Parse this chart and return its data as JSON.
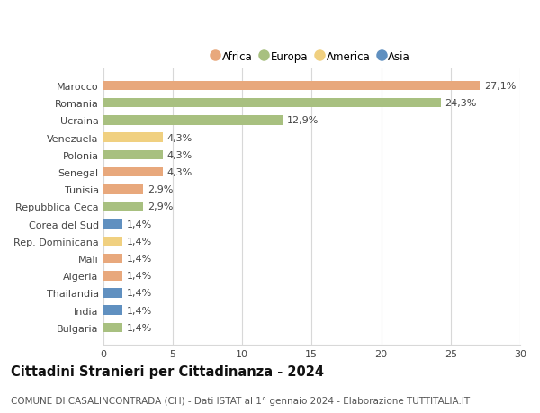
{
  "countries": [
    "Bulgaria",
    "India",
    "Thailandia",
    "Algeria",
    "Mali",
    "Rep. Dominicana",
    "Corea del Sud",
    "Repubblica Ceca",
    "Tunisia",
    "Senegal",
    "Polonia",
    "Venezuela",
    "Ucraina",
    "Romania",
    "Marocco"
  ],
  "values": [
    1.4,
    1.4,
    1.4,
    1.4,
    1.4,
    1.4,
    1.4,
    2.9,
    2.9,
    4.3,
    4.3,
    4.3,
    12.9,
    24.3,
    27.1
  ],
  "continents": [
    "Europa",
    "Asia",
    "Asia",
    "Africa",
    "Africa",
    "America",
    "Asia",
    "Europa",
    "Africa",
    "Africa",
    "Europa",
    "America",
    "Europa",
    "Europa",
    "Africa"
  ],
  "colors": {
    "Africa": "#E8A87C",
    "Europa": "#A8C080",
    "America": "#F0D080",
    "Asia": "#6090C0"
  },
  "legend_order": [
    "Africa",
    "Europa",
    "America",
    "Asia"
  ],
  "title": "Cittadini Stranieri per Cittadinanza - 2024",
  "subtitle": "COMUNE DI CASALINCONTRADA (CH) - Dati ISTAT al 1° gennaio 2024 - Elaborazione TUTTITALIA.IT",
  "xlim": [
    0,
    30
  ],
  "xticks": [
    0,
    5,
    10,
    15,
    20,
    25,
    30
  ],
  "background_color": "#ffffff",
  "grid_color": "#d8d8d8",
  "title_fontsize": 10.5,
  "subtitle_fontsize": 7.5,
  "tick_fontsize": 8,
  "label_fontsize": 8,
  "bar_height": 0.55,
  "fig_width": 6.0,
  "fig_height": 4.6,
  "legend_fontsize": 8.5,
  "marker_size": 9
}
